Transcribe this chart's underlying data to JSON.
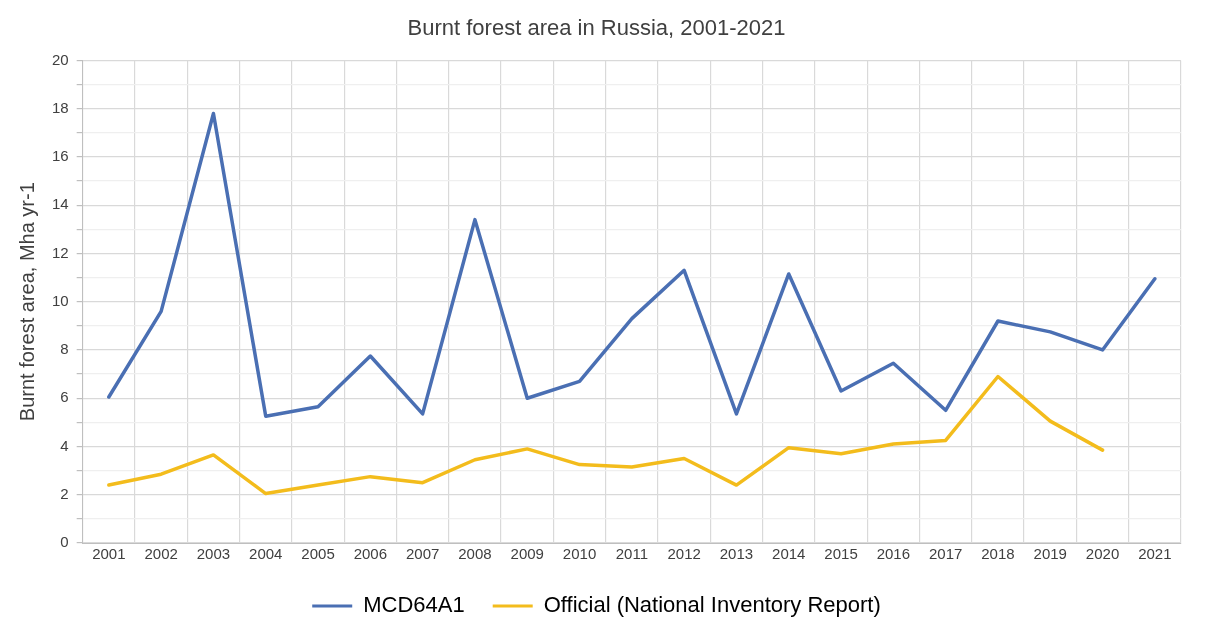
{
  "chart_data": {
    "type": "line",
    "title": "Burnt forest area in Russia, 2001-2021",
    "ylabel": "Burnt forest area, Mha yr-1",
    "categories": [
      "2001",
      "2002",
      "2003",
      "2004",
      "2005",
      "2006",
      "2007",
      "2008",
      "2009",
      "2010",
      "2011",
      "2012",
      "2013",
      "2014",
      "2015",
      "2016",
      "2017",
      "2018",
      "2019",
      "2020",
      "2021"
    ],
    "series": [
      {
        "name": "MCD64A1",
        "color": "#4a6fb3",
        "values": [
          6.05,
          9.6,
          17.8,
          5.25,
          5.65,
          7.75,
          5.35,
          13.4,
          6.0,
          6.7,
          9.3,
          11.3,
          5.35,
          11.15,
          6.3,
          7.45,
          5.5,
          9.2,
          8.75,
          8.0,
          10.95
        ]
      },
      {
        "name": "Official (National Inventory Report)",
        "color": "#f3bc1c",
        "values": [
          2.4,
          2.85,
          3.65,
          2.05,
          2.4,
          2.75,
          2.5,
          3.45,
          3.9,
          3.25,
          3.15,
          3.5,
          2.4,
          3.95,
          3.7,
          4.1,
          4.25,
          6.9,
          5.05,
          3.85,
          null
        ]
      }
    ],
    "ylim": [
      0,
      20
    ],
    "yticks": [
      0,
      {
        "value": 1,
        "label": null
      },
      2,
      {
        "value": 3,
        "label": null
      },
      4,
      {
        "value": 5,
        "label": null
      },
      6,
      {
        "value": 7,
        "label": null
      },
      8,
      {
        "value": 9,
        "label": null
      },
      10,
      {
        "value": 11,
        "label": null
      },
      12,
      {
        "value": 13,
        "label": null
      },
      14,
      {
        "value": 15,
        "label": null
      },
      16,
      {
        "value": 17,
        "label": null
      },
      18,
      {
        "value": 19,
        "label": null
      },
      20
    ],
    "grid": true,
    "legend": "bottom",
    "marker": "none",
    "line_style": "solid"
  }
}
